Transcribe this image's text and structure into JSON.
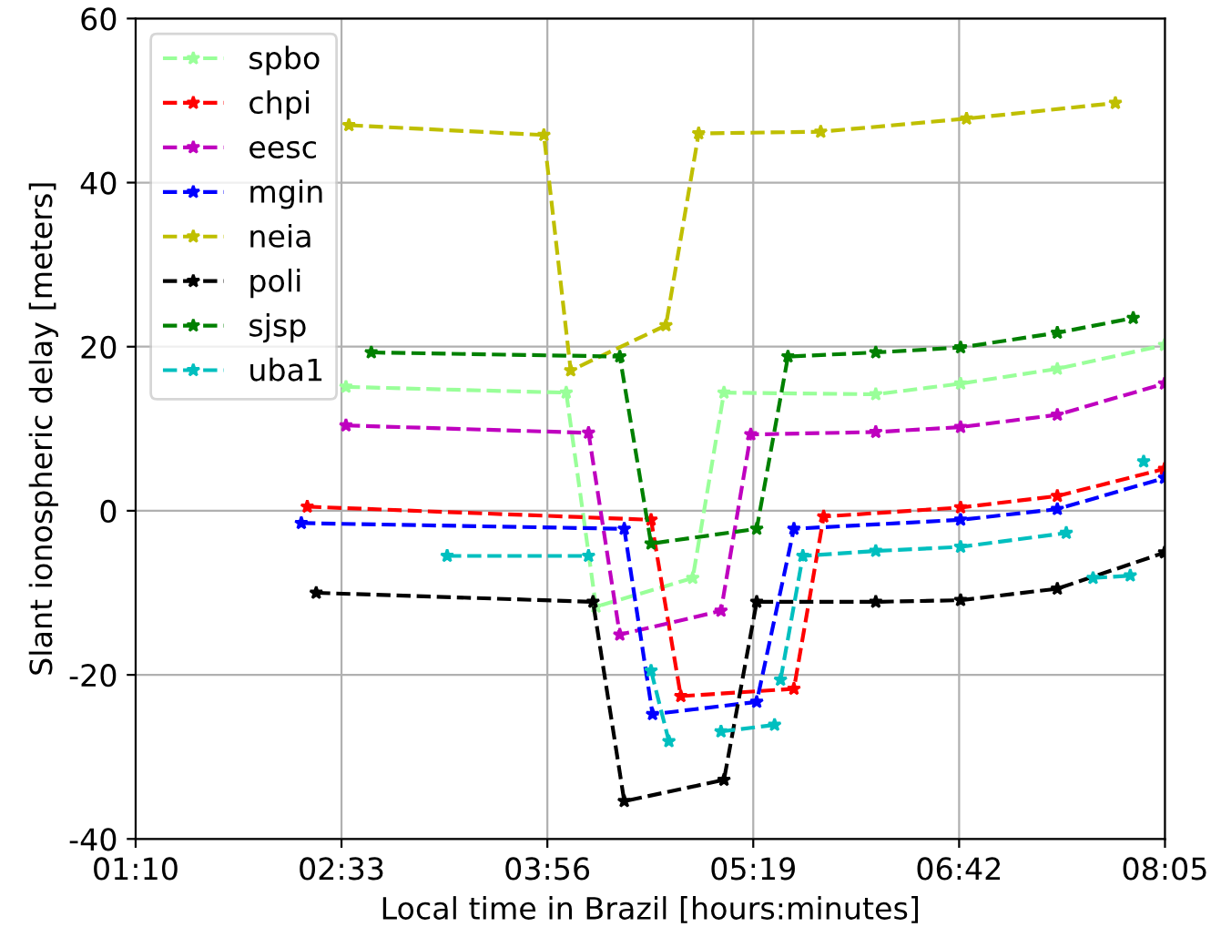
{
  "chart_data": {
    "type": "line",
    "xlabel": "Local time in Brazil [hours:minutes]",
    "ylabel": "Slant ionospheric delay [meters]",
    "xlim": [
      1.1667,
      8.0833
    ],
    "ylim": [
      -40,
      60
    ],
    "xticks": [
      {
        "value": 1.1667,
        "label": "01:10"
      },
      {
        "value": 2.55,
        "label": "02:33"
      },
      {
        "value": 3.9333,
        "label": "03:56"
      },
      {
        "value": 5.3167,
        "label": "05:19"
      },
      {
        "value": 6.7,
        "label": "06:42"
      },
      {
        "value": 8.0833,
        "label": "08:05"
      }
    ],
    "yticks": [
      -40,
      -20,
      0,
      20,
      40,
      60
    ],
    "grid": true,
    "legend": "top left",
    "marker": "star",
    "line_style": "dashed",
    "series": [
      {
        "name": "spbo",
        "color": "#99ff99",
        "x": [
          2.58,
          4.06,
          4.26,
          4.91,
          5.12,
          6.14,
          6.71,
          7.36,
          8.08
        ],
        "values": [
          15.1,
          14.4,
          -11.7,
          -8.2,
          14.4,
          14.2,
          15.5,
          17.3,
          20.2
        ]
      },
      {
        "name": "chpi",
        "color": "#ff0000",
        "x": [
          2.32,
          4.63,
          4.83,
          5.59,
          5.79,
          6.71,
          7.36,
          8.08
        ],
        "values": [
          0.5,
          -1.1,
          -22.6,
          -21.7,
          -0.7,
          0.4,
          1.8,
          5.1
        ]
      },
      {
        "name": "eesc",
        "color": "#bf00bf",
        "x": [
          2.58,
          4.21,
          4.42,
          5.1,
          5.3,
          6.14,
          6.71,
          7.36,
          8.08
        ],
        "values": [
          10.4,
          9.5,
          -15.1,
          -12.2,
          9.3,
          9.6,
          10.2,
          11.7,
          15.5
        ]
      },
      {
        "name": "mgin",
        "color": "#0000ff",
        "x": [
          2.28,
          4.45,
          4.64,
          5.34,
          5.59,
          6.71,
          7.36,
          8.08
        ],
        "values": [
          -1.5,
          -2.2,
          -24.8,
          -23.3,
          -2.2,
          -1.1,
          0.2,
          4.0
        ]
      },
      {
        "name": "neia",
        "color": "#bfbf00",
        "x": [
          2.6,
          3.91,
          4.09,
          4.73,
          4.95,
          5.77,
          6.75,
          7.75
        ],
        "values": [
          47.0,
          45.8,
          17.1,
          22.6,
          46.0,
          46.2,
          47.8,
          49.7
        ]
      },
      {
        "name": "poli",
        "color": "#000000",
        "x": [
          2.38,
          4.24,
          4.45,
          5.12,
          5.34,
          6.14,
          6.71,
          7.36,
          8.08
        ],
        "values": [
          -10.0,
          -11.1,
          -35.4,
          -32.8,
          -11.1,
          -11.1,
          -10.9,
          -9.5,
          -5.1
        ]
      },
      {
        "name": "sjsp",
        "color": "#008000",
        "x": [
          2.75,
          4.42,
          4.63,
          5.34,
          5.55,
          6.14,
          6.71,
          7.36,
          7.87
        ],
        "values": [
          19.3,
          18.8,
          -4.0,
          -2.2,
          18.8,
          19.3,
          19.9,
          21.7,
          23.5
        ]
      },
      {
        "name": "uba1",
        "color": "#00bfbf",
        "x": [
          3.26,
          4.21,
          4.4,
          4.63,
          4.75,
          4.9,
          5.1,
          5.46,
          5.48,
          5.5,
          5.65,
          6.14,
          6.71,
          7.42,
          7.5,
          7.6,
          7.85,
          7.9,
          7.94
        ],
        "values": [
          -5.5,
          -5.5,
          null,
          -19.5,
          -28.1,
          null,
          -26.9,
          -26.1,
          null,
          -20.6,
          -5.5,
          -4.9,
          -4.4,
          -2.7,
          null,
          -8.2,
          -7.9,
          null,
          6.0
        ]
      }
    ]
  }
}
